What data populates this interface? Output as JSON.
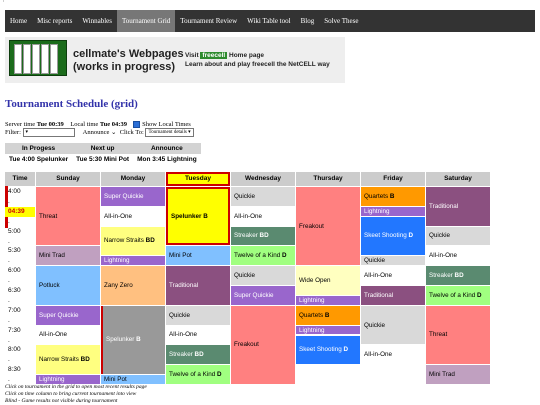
{
  "nav": {
    "items": [
      "Home",
      "Misc reports",
      "Winnables",
      "Tournament Grid",
      "Tournament Review",
      "Wiki Table tool",
      "Blog",
      "Solve These"
    ],
    "active": "Tournament Grid"
  },
  "banner": {
    "title_line1": "cellmate's Webpages",
    "title_line2": "(works in progress)",
    "link_prefix": "Visit ",
    "link_freecell": "freecell",
    "link_suffix": " Home page",
    "line2": "Learn about and play freecell the NetCELL way"
  },
  "page_title": "Tournament Schedule (grid)",
  "server_time_label": "Server time",
  "server_time": "Tue 00:39",
  "local_time_label": "Local time",
  "local_time": "Tue 04:39",
  "show_local_label": "Show Local Times",
  "filter_label": "Filter:",
  "announce_label": "Announce",
  "click_to_label": "Click To:",
  "click_to_value": "Tournament details",
  "status": {
    "headers": [
      "In Progess",
      "Next up",
      "Announce"
    ],
    "values": [
      "Tue 4:00 Spelunker",
      "Tue 5:30 Mini Pot",
      "Mon 3:45 Lightning"
    ]
  },
  "grid": {
    "time_header": "Time",
    "days": [
      "Sunday",
      "Monday",
      "Tuesday",
      "Wednesday",
      "Thursday",
      "Friday",
      "Saturday"
    ],
    "times": [
      "4:00",
      ".",
      "04:39",
      ".",
      "5:00",
      ".",
      "5:30",
      ".",
      "6:00",
      ".",
      "6:30",
      ".",
      "7:00",
      ".",
      "7:30",
      ".",
      "8:00",
      ".",
      "8:30",
      "."
    ]
  },
  "blocks": {
    "sun1": {
      "name": "Threat",
      "color": "#ff8080"
    },
    "sun2": {
      "name": "Mini Trad",
      "color": "#c0a0c0"
    },
    "sun3": {
      "name": "Potluck",
      "color": "#80c0ff"
    },
    "sun4": {
      "name": "Super Quickie",
      "color": "#9966cc"
    },
    "sun5": {
      "name": "All-in-One",
      "color": "#ffffff"
    },
    "sun6": {
      "name": "Narrow Straits",
      "badge": "BD",
      "color": "#ffff80"
    },
    "sun7": {
      "name": "Lightning",
      "color": "#9966cc"
    },
    "mon1": {
      "name": "Super Quickie",
      "color": "#9966cc"
    },
    "mon2": {
      "name": "All-in-One",
      "color": "#ffffff"
    },
    "mon3": {
      "name": "Narrow Straits",
      "badge": "BD",
      "color": "#ffff80"
    },
    "mon4": {
      "name": "Lightning",
      "color": "#9966cc"
    },
    "mon5": {
      "name": "Zany Zero",
      "color": "#ffc080"
    },
    "mon6": {
      "name": "Spelunker",
      "badge": "B",
      "color": "#999999"
    },
    "mon7": {
      "name": "Mini Pot",
      "color": "#80c0ff"
    },
    "tue1": {
      "name": "Spelunker",
      "badge": "B",
      "color": "#ffff00"
    },
    "tue2": {
      "name": "Mini Pot",
      "color": "#80c0ff"
    },
    "tue3": {
      "name": "Traditional",
      "color": "#8b5080"
    },
    "tue4": {
      "name": "Quickie",
      "color": "#d9d9d9"
    },
    "tue5": {
      "name": "All-in-One",
      "color": "#ffffff"
    },
    "tue6": {
      "name": "Streaker",
      "badge": "BD",
      "color": "#5a8a70"
    },
    "tue7": {
      "name": "Twelve of a Kind",
      "badge": "D",
      "color": "#a0ff80"
    },
    "wed1": {
      "name": "Quickie",
      "color": "#d9d9d9"
    },
    "wed2": {
      "name": "All-in-One",
      "color": "#ffffff"
    },
    "wed3": {
      "name": "Streaker",
      "badge": "BD",
      "color": "#5a8a70"
    },
    "wed4": {
      "name": "Twelve of a Kind",
      "badge": "D",
      "color": "#a0ff80"
    },
    "wed5": {
      "name": "Quickie",
      "color": "#d9d9d9"
    },
    "wed6": {
      "name": "Super Quickie",
      "color": "#9966cc"
    },
    "wed7": {
      "name": "Freakout",
      "color": "#ff8080"
    },
    "thu1": {
      "name": "Freakout",
      "color": "#ff8080"
    },
    "thu2": {
      "name": "Wide Open",
      "color": "#ffffc0"
    },
    "thu3": {
      "name": "Lightning",
      "color": "#9966cc"
    },
    "thu4": {
      "name": "Quartets",
      "badge": "B",
      "color": "#ff9900"
    },
    "thu5": {
      "name": "Lightning",
      "color": "#9966cc"
    },
    "thu6": {
      "name": "Skeet Shooting",
      "badge": "D",
      "color": "#2277ff"
    },
    "fri1": {
      "name": "Quartets",
      "badge": "B",
      "color": "#ff9900"
    },
    "fri2": {
      "name": "Lightning",
      "color": "#9966cc"
    },
    "fri3": {
      "name": "Skeet Shooting",
      "badge": "D",
      "color": "#2277ff"
    },
    "fri4": {
      "name": "Quickie",
      "color": "#d9d9d9"
    },
    "fri5": {
      "name": "All-in-One",
      "color": "#ffffff"
    },
    "fri6": {
      "name": "Traditional",
      "color": "#8b5080"
    },
    "fri7": {
      "name": "Quickie",
      "color": "#d9d9d9"
    },
    "fri8": {
      "name": "All-in-One",
      "color": "#ffffff"
    },
    "sat1": {
      "name": "Traditional",
      "color": "#8b5080"
    },
    "sat2": {
      "name": "Quickie",
      "color": "#d9d9d9"
    },
    "sat3": {
      "name": "All-in-One",
      "color": "#ffffff"
    },
    "sat4": {
      "name": "Streaker",
      "badge": "BD",
      "color": "#5a8a70"
    },
    "sat5": {
      "name": "Twelve of a Kind",
      "badge": "D",
      "color": "#a0ff80"
    },
    "sat6": {
      "name": "Threat",
      "color": "#ff8080"
    },
    "sat7": {
      "name": "Mini Trad",
      "color": "#c0a0c0"
    }
  },
  "notes": [
    "Click on tournament in the grid to open most recent results page",
    "Click on time column to bring current tournament into view",
    "Blind - Game results not visible during tournament"
  ]
}
